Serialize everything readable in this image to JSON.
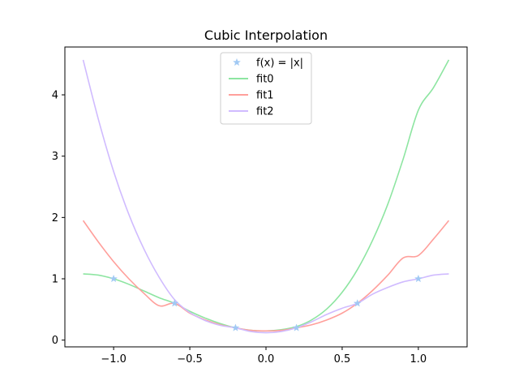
{
  "chart_data": {
    "type": "line",
    "title": "Cubic Interpolation",
    "xlabel": "",
    "ylabel": "",
    "xlim": [
      -1.32,
      1.32
    ],
    "ylim": [
      -0.11,
      4.78
    ],
    "xticks": [
      -1.0,
      -0.5,
      0.0,
      0.5,
      1.0
    ],
    "xtick_labels": [
      "−1.0",
      "−0.5",
      "0.0",
      "0.5",
      "1.0"
    ],
    "yticks": [
      0,
      1,
      2,
      3,
      4
    ],
    "ytick_labels": [
      "0",
      "1",
      "2",
      "3",
      "4"
    ],
    "grid": false,
    "legend_position": "upper center",
    "x_range": [
      -1.2,
      1.2
    ],
    "series": [
      {
        "name": "f(x) = |x|",
        "kind": "markers",
        "marker": "star",
        "color": "#a1c9f4",
        "x": [
          -1.0,
          -0.6,
          -0.2,
          0.2,
          0.6,
          1.0
        ],
        "y": [
          1.0,
          0.6,
          0.2,
          0.2,
          0.6,
          1.0
        ]
      },
      {
        "name": "fit0",
        "kind": "line",
        "color": "#8de5a1",
        "x": [
          -1.2,
          -1.1,
          -1.0,
          -0.9,
          -0.8,
          -0.7,
          -0.6,
          -0.5,
          -0.4,
          -0.3,
          -0.2,
          -0.1,
          0.0,
          0.1,
          0.2,
          0.3,
          0.4,
          0.5,
          0.6,
          0.7,
          0.8,
          0.9,
          1.0,
          1.1,
          1.2
        ],
        "y": [
          1.08,
          1.06,
          1.0,
          0.91,
          0.8,
          0.69,
          0.6,
          0.47,
          0.36,
          0.27,
          0.2,
          0.16,
          0.15,
          0.17,
          0.22,
          0.33,
          0.51,
          0.78,
          1.15,
          1.63,
          2.22,
          2.95,
          3.75,
          4.12,
          4.57
        ]
      },
      {
        "name": "fit1",
        "kind": "line",
        "color": "#ff9f9b",
        "x": [
          -1.2,
          -1.1,
          -1.0,
          -0.9,
          -0.8,
          -0.7,
          -0.6,
          -0.5,
          -0.4,
          -0.3,
          -0.2,
          -0.1,
          0.0,
          0.1,
          0.2,
          0.3,
          0.4,
          0.5,
          0.6,
          0.7,
          0.8,
          0.9,
          1.0,
          1.1,
          1.2
        ],
        "y": [
          1.95,
          1.6,
          1.28,
          1.0,
          0.76,
          0.56,
          0.6,
          0.44,
          0.33,
          0.25,
          0.2,
          0.16,
          0.15,
          0.16,
          0.2,
          0.25,
          0.33,
          0.44,
          0.6,
          0.81,
          1.06,
          1.34,
          1.38,
          1.65,
          1.95
        ]
      },
      {
        "name": "fit2",
        "kind": "line",
        "color": "#d0bbff",
        "x": [
          -1.2,
          -1.1,
          -1.0,
          -0.9,
          -0.8,
          -0.7,
          -0.6,
          -0.5,
          -0.4,
          -0.3,
          -0.2,
          -0.1,
          0.0,
          0.1,
          0.2,
          0.3,
          0.4,
          0.5,
          0.6,
          0.7,
          0.8,
          0.9,
          1.0,
          1.1,
          1.2
        ],
        "y": [
          4.57,
          3.6,
          2.75,
          2.05,
          1.48,
          1.02,
          0.66,
          0.45,
          0.32,
          0.24,
          0.2,
          0.14,
          0.12,
          0.14,
          0.2,
          0.3,
          0.42,
          0.52,
          0.6,
          0.75,
          0.86,
          0.95,
          1.0,
          1.06,
          1.08
        ]
      }
    ]
  }
}
